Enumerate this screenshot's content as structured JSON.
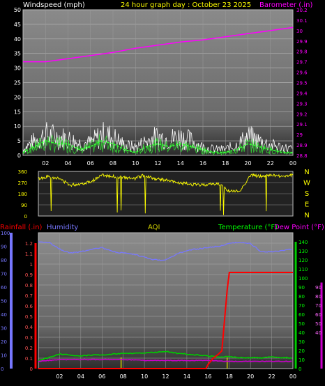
{
  "header": {
    "windspeed_label": "Windspeed (mph)",
    "title": "24 hour graph day : October 23 2025",
    "barometer_label": "Barometer (.in)"
  },
  "direction_letters": [
    "N",
    "W",
    "S",
    "E",
    "N"
  ],
  "lower_header": {
    "rainfall_label": "Rainfall (.in)",
    "humidity_label": "Humidity",
    "aqi_label": "AQI",
    "temperature_label": "Temperature (°F)",
    "dewpoint_label": "Dew Point (°F)"
  },
  "colors": {
    "wind_gust": "#ffffff",
    "wind_avg": "#33cc33",
    "wind_ma": "#33ff33",
    "barometer": "#ff00ff",
    "direction": "#ffff00",
    "rain": "#ff0000",
    "humidity": "#7777ff",
    "temperature": "#00cc00",
    "dewpoint": "#cc00cc",
    "aqi": "#cccc00"
  },
  "chart_data": [
    {
      "type": "line",
      "x_ticks": [
        "02",
        "04",
        "06",
        "08",
        "10",
        "12",
        "14",
        "16",
        "18",
        "20",
        "22",
        "00"
      ],
      "y_left_ticks": [
        0,
        5,
        10,
        15,
        20,
        25,
        30,
        35,
        40,
        45,
        50
      ],
      "y_left_range": [
        0,
        50
      ],
      "y_right_ticks": [
        "28.8",
        "28.9",
        "29",
        "29.1",
        "29.2",
        "29.3",
        "29.4",
        "29.5",
        "29.6",
        "29.7",
        "29.8",
        "29.9",
        "30",
        "30.1",
        "30.2"
      ],
      "y_right_range": [
        28.8,
        30.2
      ],
      "x_range": [
        0,
        24
      ],
      "series": [
        {
          "key": "barometer",
          "x": [
            0,
            2,
            4,
            6,
            8,
            10,
            12,
            14,
            16,
            18,
            20,
            22,
            24
          ],
          "values": [
            29.7,
            29.7,
            29.73,
            29.76,
            29.79,
            29.83,
            29.86,
            29.89,
            29.91,
            29.94,
            29.97,
            30.0,
            30.03
          ]
        },
        {
          "key": "gust",
          "x": [
            0,
            1,
            2,
            3,
            4,
            5,
            6,
            7,
            8,
            9,
            10,
            11,
            12,
            13,
            14,
            15,
            16,
            17,
            18,
            19,
            20,
            21,
            22,
            23,
            24
          ],
          "values": [
            3,
            7,
            10,
            9,
            8,
            6,
            6,
            10,
            9,
            5,
            4,
            7,
            9,
            8,
            9,
            7,
            4,
            3,
            3,
            5,
            9,
            7,
            5,
            4,
            3
          ]
        },
        {
          "key": "avg",
          "x": [
            0,
            1,
            2,
            3,
            4,
            5,
            6,
            7,
            8,
            9,
            10,
            11,
            12,
            13,
            14,
            15,
            16,
            17,
            18,
            19,
            20,
            21,
            22,
            23,
            24
          ],
          "values": [
            1,
            3,
            5,
            4,
            4,
            2,
            3,
            5,
            4,
            2,
            1,
            3,
            4,
            3,
            4,
            3,
            2,
            1,
            1,
            2,
            4,
            3,
            2,
            1,
            1
          ]
        }
      ]
    },
    {
      "type": "line",
      "y_left_ticks": [
        0,
        90,
        180,
        270,
        360
      ],
      "y_range": [
        0,
        360
      ],
      "x_range": [
        0,
        24
      ],
      "series": [
        {
          "key": "direction",
          "x": [
            0,
            1,
            2,
            3,
            4,
            5,
            6,
            7,
            8,
            9,
            10,
            11,
            12,
            13,
            14,
            15,
            16,
            17,
            17.5,
            18,
            18.5,
            19,
            20,
            21,
            22,
            23,
            24
          ],
          "values": [
            300,
            320,
            300,
            250,
            260,
            280,
            330,
            320,
            310,
            300,
            330,
            300,
            290,
            270,
            260,
            250,
            255,
            260,
            230,
            200,
            200,
            200,
            330,
            320,
            330,
            320,
            330
          ]
        }
      ]
    },
    {
      "type": "line",
      "x_ticks": [
        "02",
        "04",
        "06",
        "08",
        "10",
        "12",
        "14",
        "16",
        "18",
        "20",
        "22",
        "00"
      ],
      "rain_ticks": [
        "0",
        "0.1",
        "0.2",
        "0.3",
        "0.4",
        "0.5",
        "0.6",
        "0.7",
        "0.8",
        "0.9",
        "1",
        "1.1",
        "1.2"
      ],
      "rain_range": [
        0,
        1.3
      ],
      "humidity_ticks": [
        0,
        10,
        20,
        30,
        40,
        50,
        60,
        70,
        80,
        90,
        100
      ],
      "humidity_range": [
        0,
        100
      ],
      "temp_ticks": [
        0,
        10,
        20,
        30,
        40,
        50,
        60,
        70,
        80,
        90,
        100,
        110,
        120,
        130,
        140
      ],
      "temp_range": [
        0,
        150
      ],
      "dew_ticks": [
        40,
        50,
        60,
        70,
        80,
        90
      ],
      "x_range": [
        0,
        24
      ],
      "series": [
        {
          "key": "humidity",
          "x": [
            0,
            1,
            2,
            3,
            4,
            5,
            6,
            7,
            8,
            9,
            10,
            11,
            12,
            13,
            14,
            15,
            16,
            17,
            18,
            19,
            20,
            21,
            22,
            23,
            24
          ],
          "values": [
            93,
            93,
            88,
            85,
            86,
            88,
            89,
            86,
            85,
            84,
            82,
            80,
            80,
            84,
            87,
            88,
            89,
            90,
            92,
            93,
            92,
            86,
            86,
            87,
            88
          ]
        },
        {
          "key": "temperature",
          "x": [
            0,
            1,
            2,
            3,
            4,
            5,
            6,
            7,
            8,
            9,
            10,
            11,
            12,
            13,
            14,
            15,
            16,
            17,
            18,
            19,
            20,
            21,
            22,
            23,
            24
          ],
          "values": [
            9,
            12,
            16,
            15,
            14,
            15,
            15,
            16,
            17,
            17,
            17,
            18,
            19,
            17,
            16,
            15,
            14,
            13,
            13,
            12,
            12,
            12,
            13,
            12,
            12
          ]
        },
        {
          "key": "dewpoint",
          "x": [
            0,
            2,
            4,
            6,
            8,
            10,
            12,
            14,
            16,
            18,
            20,
            22,
            24
          ],
          "values": [
            8,
            10,
            10,
            10,
            10,
            9,
            9,
            9,
            9,
            8,
            8,
            8,
            8
          ]
        },
        {
          "key": "rain",
          "x": [
            0,
            15.8,
            16.0,
            16.5,
            17.0,
            17.3,
            17.5,
            17.8,
            18.0,
            24
          ],
          "values": [
            0,
            0,
            0.04,
            0.1,
            0.14,
            0.17,
            0.4,
            0.75,
            0.92,
            0.92
          ]
        },
        {
          "key": "aqi",
          "x": [
            7.8,
            17.8
          ],
          "values": [
            1,
            1
          ]
        }
      ]
    }
  ]
}
